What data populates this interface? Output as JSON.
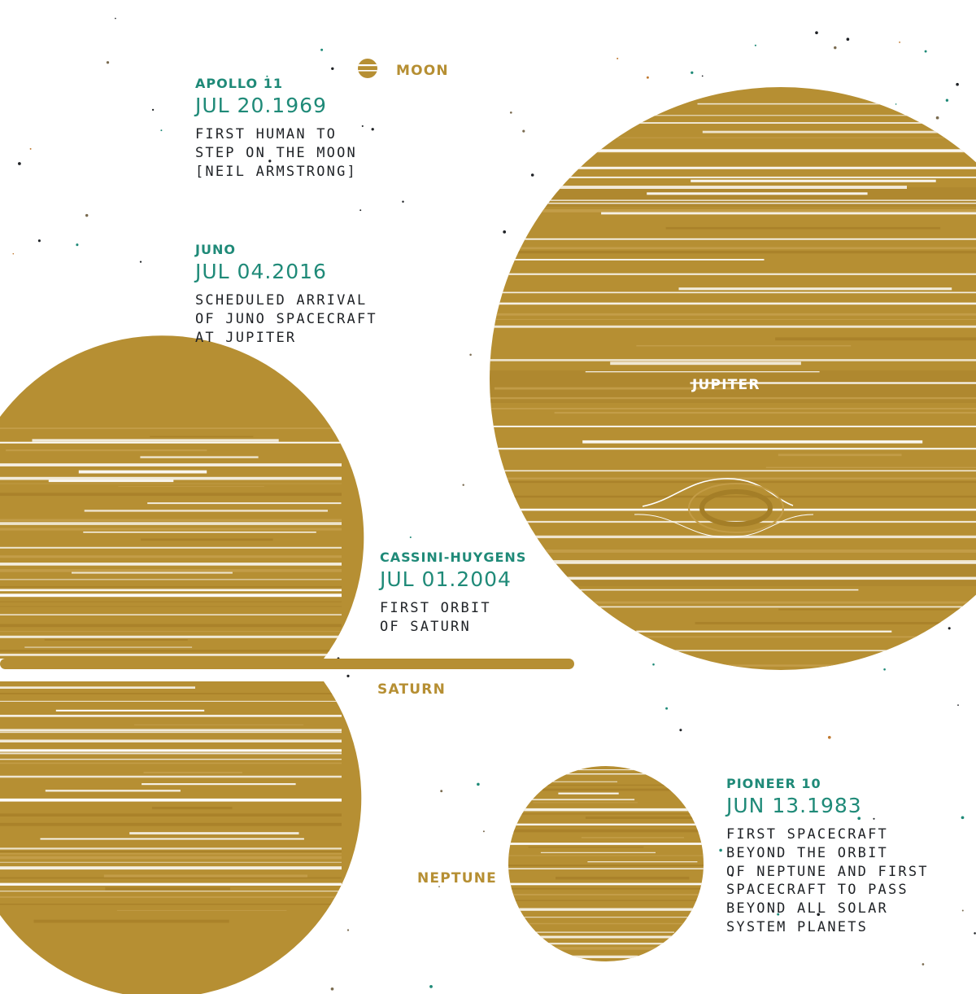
{
  "colors": {
    "planet": "#b68f33",
    "planet_dark": "#ad8529",
    "teal": "#1f8a78",
    "text_dark": "#1f2226",
    "background": "#ffffff"
  },
  "planet_labels": {
    "moon": "MOON",
    "jupiter": "JUPITER",
    "saturn": "SATURN",
    "neptune": "NEPTUNE"
  },
  "missions": [
    {
      "id": "apollo",
      "name": "APOLLO 11",
      "date": "JUL 20.1969",
      "description": [
        "FIRST HUMAN TO",
        "STEP ON THE MOON",
        "[NEIL ARMSTRONG]"
      ]
    },
    {
      "id": "juno",
      "name": "JUNO",
      "date": "JUL 04.2016",
      "description": [
        "SCHEDULED ARRIVAL",
        "OF JUNO SPACECRAFT",
        "AT JUPITER"
      ]
    },
    {
      "id": "cassini",
      "name": "CASSINI-HUYGENS",
      "date": "JUL 01.2004",
      "description": [
        "FIRST ORBIT",
        "OF SATURN"
      ]
    },
    {
      "id": "pioneer",
      "name": "PIONEER 10",
      "date": "JUN 13.1983",
      "description": [
        "FIRST SPACECRAFT",
        "BEYOND THE ORBIT",
        "OF NEPTUNE AND FIRST",
        "SPACECRAFT TO PASS",
        "BEYOND ALL SOLAR",
        "SYSTEM PLANETS"
      ]
    }
  ]
}
